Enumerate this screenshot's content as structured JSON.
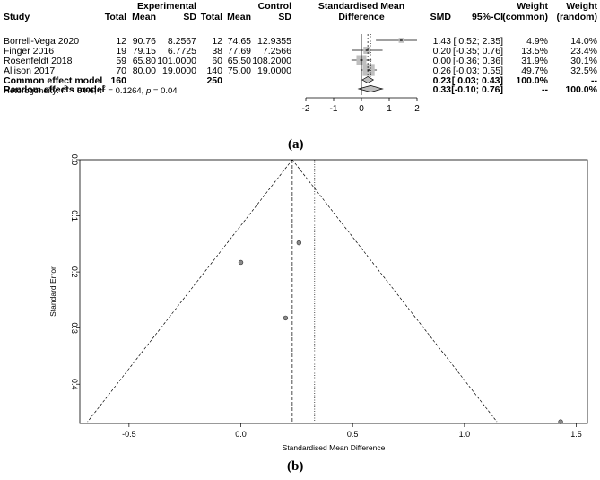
{
  "forest": {
    "header": {
      "group1": "Experimental",
      "group2": "Control",
      "study": "Study",
      "total": "Total",
      "mean": "Mean",
      "sd": "SD",
      "effect_line1": "Standardised Mean",
      "effect_line2": "Difference",
      "smd": "SMD",
      "ci": "95%-CI",
      "weight": "Weight",
      "w_common": "(common)",
      "w_random": "(random)"
    },
    "studies": [
      {
        "study": "Borrell-Vega 2020",
        "e_total": "12",
        "e_mean": "90.76",
        "e_sd": "8.2567",
        "c_total": "12",
        "c_mean": "74.65",
        "c_sd": "12.9355",
        "smd": 1.43,
        "lower": 0.52,
        "upper": 2.35,
        "weight_common_pct": 4.9,
        "smd_text": "1.43",
        "ci_text": "[ 0.52; 2.35]",
        "w_common": "4.9%",
        "w_random": "14.0%"
      },
      {
        "study": "Finger 2016",
        "e_total": "19",
        "e_mean": "79.15",
        "e_sd": "6.7725",
        "c_total": "38",
        "c_mean": "77.69",
        "c_sd": "7.2566",
        "smd": 0.2,
        "lower": -0.35,
        "upper": 0.76,
        "weight_common_pct": 13.5,
        "smd_text": "0.20",
        "ci_text": "[-0.35; 0.76]",
        "w_common": "13.5%",
        "w_random": "23.4%"
      },
      {
        "study": "Rosenfeldt 2018",
        "e_total": "59",
        "e_mean": "65.80",
        "e_sd": "101.0000",
        "c_total": "60",
        "c_mean": "65.50",
        "c_sd": "108.2000",
        "smd": 0.0,
        "lower": -0.36,
        "upper": 0.36,
        "weight_common_pct": 31.9,
        "smd_text": "0.00",
        "ci_text": "[-0.36; 0.36]",
        "w_common": "31.9%",
        "w_random": "30.1%"
      },
      {
        "study": "Allison 2017",
        "e_total": "70",
        "e_mean": "80.00",
        "e_sd": "19.0000",
        "c_total": "140",
        "c_mean": "75.00",
        "c_sd": "19.0000",
        "smd": 0.26,
        "lower": -0.03,
        "upper": 0.55,
        "weight_common_pct": 49.7,
        "smd_text": "0.26",
        "ci_text": "[-0.03; 0.55]",
        "w_common": "49.7%",
        "w_random": "32.5%"
      }
    ],
    "common": {
      "label": "Common effect model",
      "e_total": "160",
      "c_total": "250",
      "smd": 0.23,
      "lower": 0.03,
      "upper": 0.43,
      "smd_text": "0.23",
      "ci_text": "[ 0.03; 0.43]",
      "w_common": "100.0%",
      "w_random": "--"
    },
    "random": {
      "label": "Random effects model",
      "smd": 0.33,
      "lower": -0.1,
      "upper": 0.76,
      "smd_text": "0.33",
      "ci_text": "[-0.10; 0.76]",
      "w_common": "--",
      "w_random": "100.0%"
    },
    "heterogeneity": {
      "prefix": "Heterogeneity: ",
      "i2_symbol": "I",
      "i2_exp": "2",
      "i2_value": " = 64%, ",
      "tau_symbol": "τ",
      "tau_exp": "2",
      "tau_value": " = 0.1264, ",
      "p_symbol": "p",
      "p_value": " = 0.04"
    },
    "axis": {
      "min": -2,
      "max": 2,
      "ticks": [
        -2,
        -1,
        0,
        1,
        2
      ],
      "tick_labels": [
        "-2",
        "-1",
        "0",
        "1",
        "2"
      ]
    },
    "panel_label": "(a)"
  },
  "chart_data": [
    {
      "type": "forest",
      "x_range": [
        -2,
        2
      ],
      "studies": [
        "Borrell-Vega 2020",
        "Finger 2016",
        "Rosenfeldt 2018",
        "Allison 2017"
      ],
      "smd": [
        1.43,
        0.2,
        0.0,
        0.26
      ],
      "ci_lower": [
        0.52,
        -0.35,
        -0.36,
        -0.03
      ],
      "ci_upper": [
        2.35,
        0.76,
        0.36,
        0.55
      ],
      "common_effect": {
        "smd": 0.23,
        "lower": 0.03,
        "upper": 0.43
      },
      "random_effect": {
        "smd": 0.33,
        "lower": -0.1,
        "upper": 0.76
      }
    },
    {
      "type": "scatter",
      "title": "",
      "xlabel": "Standardised Mean Difference",
      "ylabel": "Standard Error",
      "xlim": [
        -0.72,
        1.55
      ],
      "ylim": [
        0.0,
        0.47
      ],
      "y_reversed": true,
      "x_ticks": [
        -0.5,
        0.0,
        0.5,
        1.0,
        1.5
      ],
      "x_tick_labels": [
        "-0.5",
        "0.0",
        "0.5",
        "1.0",
        "1.5"
      ],
      "y_ticks": [
        0.0,
        0.1,
        0.2,
        0.3,
        0.4
      ],
      "y_tick_labels": [
        "0.0",
        "0.1",
        "0.2",
        "0.3",
        "0.4"
      ],
      "points": [
        {
          "x": 1.43,
          "y": 0.467
        },
        {
          "x": 0.2,
          "y": 0.282
        },
        {
          "x": 0.0,
          "y": 0.183
        },
        {
          "x": 0.26,
          "y": 0.148
        }
      ],
      "common_effect_line": 0.23,
      "random_effect_line": 0.33,
      "funnel_limit_se": 0.467,
      "panel_label": "(b)"
    }
  ]
}
